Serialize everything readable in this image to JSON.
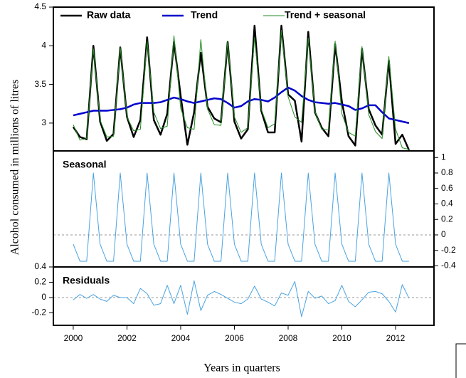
{
  "chart_data": {
    "type": "line",
    "ylabel": "Alcohol consumed in millions of litres",
    "xlabel": "Years in quarters",
    "x": [
      2000,
      2000.25,
      2000.5,
      2000.75,
      2001,
      2001.25,
      2001.5,
      2001.75,
      2002,
      2002.25,
      2002.5,
      2002.75,
      2003,
      2003.25,
      2003.5,
      2003.75,
      2004,
      2004.25,
      2004.5,
      2004.75,
      2005,
      2005.25,
      2005.5,
      2005.75,
      2006,
      2006.25,
      2006.5,
      2006.75,
      2007,
      2007.25,
      2007.5,
      2007.75,
      2008,
      2008.25,
      2008.5,
      2008.75,
      2009,
      2009.25,
      2009.5,
      2009.75,
      2010,
      2010.25,
      2010.5,
      2010.75,
      2011,
      2011.25,
      2011.5,
      2011.75,
      2012,
      2012.25,
      2012.5
    ],
    "xlim": [
      1999.26,
      2013.43
    ],
    "xticks": [
      2000,
      2002,
      2004,
      2006,
      2008,
      2010,
      2012
    ],
    "panels": [
      {
        "axis_side": "left",
        "ylim": [
          2.64,
          4.5
        ],
        "yticks": [
          3,
          3.5,
          4,
          4.5
        ],
        "legend": "top",
        "series": [
          {
            "name": "Raw data",
            "color": "#000000",
            "width": 2.5,
            "values": [
              2.95,
              2.82,
              2.79,
              4.0,
              3.02,
              2.77,
              2.86,
              3.98,
              3.08,
              2.82,
              3.04,
              4.11,
              3.04,
              2.85,
              3.12,
              4.05,
              3.35,
              2.72,
              3.14,
              3.91,
              3.21,
              3.06,
              3.01,
              4.05,
              3.02,
              2.8,
              2.92,
              4.26,
              3.16,
              2.88,
              2.88,
              4.26,
              3.37,
              3.29,
              2.76,
              4.18,
              3.14,
              2.94,
              2.83,
              4.02,
              3.28,
              2.83,
              2.71,
              3.96,
              3.18,
              2.97,
              2.85,
              3.81,
              2.73,
              2.85,
              2.65
            ]
          },
          {
            "name": "Trend",
            "color": "#0000cc",
            "width": 2.5,
            "values": [
              3.1,
              3.12,
              3.14,
              3.16,
              3.16,
              3.16,
              3.17,
              3.18,
              3.2,
              3.24,
              3.26,
              3.26,
              3.26,
              3.27,
              3.3,
              3.33,
              3.31,
              3.28,
              3.26,
              3.28,
              3.3,
              3.32,
              3.31,
              3.26,
              3.2,
              3.22,
              3.28,
              3.31,
              3.3,
              3.28,
              3.33,
              3.4,
              3.46,
              3.42,
              3.35,
              3.3,
              3.27,
              3.26,
              3.25,
              3.26,
              3.24,
              3.22,
              3.17,
              3.19,
              3.23,
              3.23,
              3.14,
              3.06,
              3.04,
              3.02,
              3.0
            ]
          },
          {
            "name": "Trend + seasonal",
            "color": "#228b22",
            "width": 1,
            "values": [
              2.98,
              2.78,
              2.8,
              3.96,
              3.04,
              2.82,
              2.83,
              3.98,
              3.08,
              2.9,
              2.92,
              4.06,
              3.14,
              2.93,
              2.96,
              4.13,
              3.19,
              2.94,
              2.92,
              4.08,
              3.18,
              2.98,
              2.97,
              4.06,
              3.08,
              2.88,
              2.94,
              4.11,
              3.18,
              2.94,
              2.99,
              4.2,
              3.34,
              3.08,
              3.01,
              4.1,
              3.15,
              2.92,
              2.91,
              4.06,
              3.12,
              2.88,
              2.83,
              3.99,
              3.11,
              2.89,
              2.8,
              3.86,
              2.92,
              2.68,
              2.66
            ]
          }
        ]
      },
      {
        "title": "Seasonal",
        "axis_side": "right",
        "ylim": [
          -0.414,
          1.085
        ],
        "yticks": [
          -0.4,
          -0.2,
          0,
          0.2,
          0.4,
          0.6,
          0.8,
          1
        ],
        "reference_line": 0,
        "series": [
          {
            "color": "#4aa3e0",
            "width": 1,
            "values": [
              -0.12,
              -0.34,
              -0.34,
              0.8,
              -0.12,
              -0.34,
              -0.34,
              0.8,
              -0.12,
              -0.34,
              -0.34,
              0.8,
              -0.12,
              -0.34,
              -0.34,
              0.8,
              -0.12,
              -0.34,
              -0.34,
              0.8,
              -0.12,
              -0.34,
              -0.34,
              0.8,
              -0.12,
              -0.34,
              -0.34,
              0.8,
              -0.12,
              -0.34,
              -0.34,
              0.8,
              -0.12,
              -0.34,
              -0.34,
              0.8,
              -0.12,
              -0.34,
              -0.34,
              0.8,
              -0.12,
              -0.34,
              -0.34,
              0.8,
              -0.12,
              -0.34,
              -0.34,
              0.8,
              -0.12,
              -0.34,
              -0.34
            ]
          }
        ]
      },
      {
        "title": "Residuals",
        "axis_side": "left",
        "ylim": [
          -0.363,
          0.4
        ],
        "yticks": [
          -0.2,
          0,
          0.2,
          0.4
        ],
        "reference_line": 0,
        "show_xaxis": true,
        "series": [
          {
            "color": "#4aa3e0",
            "width": 1,
            "values": [
              -0.03,
              0.04,
              -0.01,
              0.04,
              -0.02,
              -0.05,
              0.03,
              0,
              0,
              -0.08,
              0.12,
              0.05,
              -0.1,
              -0.08,
              0.16,
              -0.08,
              0.16,
              -0.22,
              0.22,
              -0.17,
              0.03,
              0.08,
              0.04,
              -0.01,
              -0.06,
              -0.08,
              -0.02,
              0.15,
              -0.02,
              -0.06,
              -0.11,
              0.06,
              0.03,
              0.21,
              -0.25,
              0.08,
              -0.01,
              0.02,
              -0.08,
              -0.04,
              0.16,
              -0.05,
              -0.12,
              -0.03,
              0.07,
              0.08,
              0.05,
              -0.05,
              -0.19,
              0.17,
              -0.01
            ]
          }
        ]
      }
    ]
  }
}
